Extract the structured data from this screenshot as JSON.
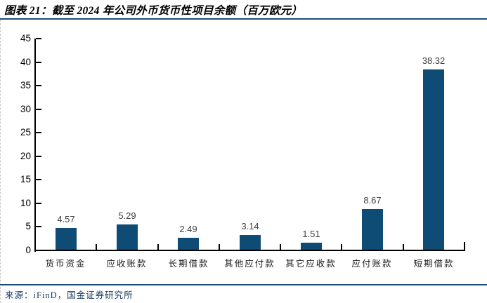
{
  "figure": {
    "title": "图表 21：截至 2024 年公司外币货币性项目余额（百万欧元）",
    "source": "来源：iFinD，国金证券研究所"
  },
  "colors": {
    "bar": "#0F4C75",
    "rule": "#1B4F72",
    "axis": "#000000",
    "value_label": "#3F3F3F"
  },
  "chart_data": {
    "type": "bar",
    "title": "截至 2024 年公司外币货币性项目余额（百万欧元）",
    "categories": [
      "货币资金",
      "应收账款",
      "长期借款",
      "其他应付款",
      "其它应收款",
      "应付账款",
      "短期借款"
    ],
    "values": [
      4.57,
      5.29,
      2.49,
      3.14,
      1.51,
      8.67,
      38.32
    ],
    "value_labels": [
      "4.57",
      "5.29",
      "2.49",
      "3.14",
      "1.51",
      "8.67",
      "38.32"
    ],
    "xlabel": "",
    "ylabel": "",
    "ylim": [
      0,
      45
    ],
    "ytick_step": 5,
    "ytick_labels": [
      "0",
      "5",
      "10",
      "15",
      "20",
      "25",
      "30",
      "35",
      "40",
      "45"
    ],
    "grid": false,
    "legend": null,
    "data_labels_shown": true
  }
}
